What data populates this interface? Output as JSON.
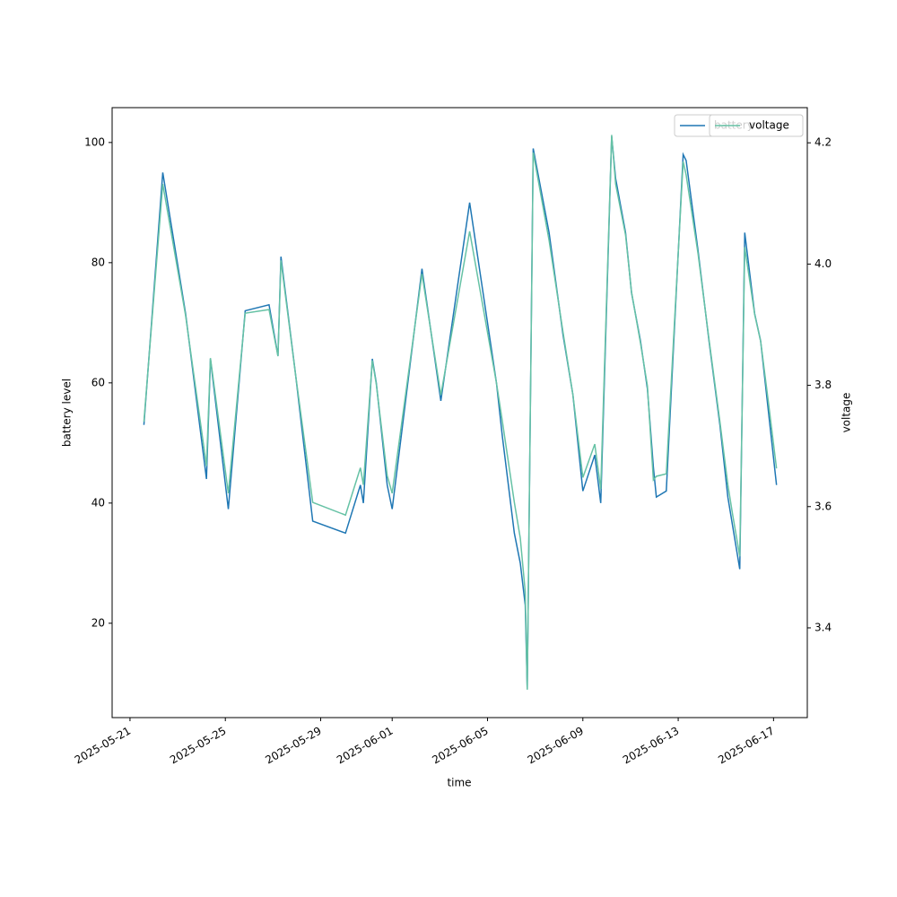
{
  "chart_data": {
    "type": "line",
    "x": [
      "2025-05-21T14:00",
      "2025-05-22T09:00",
      "2025-05-23T08:00",
      "2025-05-24T05:00",
      "2025-05-24T09:00",
      "2025-05-25T03:00",
      "2025-05-25T20:00",
      "2025-05-26T20:00",
      "2025-05-27T05:00",
      "2025-05-27T08:00",
      "2025-05-27T23:00",
      "2025-05-28T16:00",
      "2025-05-30T01:00",
      "2025-05-30T16:00",
      "2025-05-30T19:00",
      "2025-05-31T04:00",
      "2025-05-31T08:00",
      "2025-05-31T19:00",
      "2025-06-01T00:00",
      "2025-06-02T06:00",
      "2025-06-03T01:00",
      "2025-06-04T06:00",
      "2025-06-05T09:00",
      "2025-06-05T15:00",
      "2025-06-06T03:00",
      "2025-06-06T09:00",
      "2025-06-06T14:00",
      "2025-06-06T16:00",
      "2025-06-06T22:00",
      "2025-06-07T14:00",
      "2025-06-08T04:00",
      "2025-06-08T14:00",
      "2025-06-09T00:00",
      "2025-06-09T12:00",
      "2025-06-09T18:00",
      "2025-06-10T05:00",
      "2025-06-10T09:00",
      "2025-06-10T19:00",
      "2025-06-11T01:00",
      "2025-06-11T10:00",
      "2025-06-11T17:00",
      "2025-06-11T23:00",
      "2025-06-12T02:00",
      "2025-06-12T12:00",
      "2025-06-13T05:00",
      "2025-06-13T08:00",
      "2025-06-13T20:00",
      "2025-06-14T07:00",
      "2025-06-14T18:00",
      "2025-06-15T02:00",
      "2025-06-15T07:00",
      "2025-06-15T14:00",
      "2025-06-15T19:00",
      "2025-06-16T05:00",
      "2025-06-16T11:00",
      "2025-06-16T19:00",
      "2025-06-17T03:00"
    ],
    "series": [
      {
        "name": "battery",
        "color": "#1f77b4",
        "axis": "y",
        "values": [
          53,
          95,
          71.5,
          44,
          64,
          39,
          72,
          73,
          64.5,
          81,
          61,
          37,
          35,
          43,
          40,
          64,
          60,
          43,
          39,
          79,
          57,
          90,
          60,
          51,
          35,
          30,
          23,
          9,
          99,
          85,
          68,
          58,
          42,
          48,
          40,
          101,
          94,
          85,
          75,
          67,
          59,
          46,
          41,
          42,
          98,
          97,
          82,
          67,
          53,
          41,
          36,
          29,
          85,
          71.5,
          67,
          55,
          43
        ]
      },
      {
        "name": "voltage",
        "color": "#66c2a5",
        "axis": "y2",
        "values": [
          3.74,
          4.132,
          3.915,
          3.667,
          3.845,
          3.622,
          3.919,
          3.925,
          3.848,
          4.006,
          3.814,
          3.607,
          3.586,
          3.664,
          3.636,
          3.841,
          3.802,
          3.651,
          3.622,
          3.984,
          3.784,
          4.054,
          3.804,
          3.74,
          3.607,
          3.548,
          3.459,
          3.298,
          4.184,
          4.039,
          3.888,
          3.784,
          3.648,
          3.703,
          3.629,
          4.213,
          4.132,
          4.048,
          3.954,
          3.87,
          3.799,
          3.644,
          3.65,
          3.654,
          4.169,
          4.147,
          4.017,
          3.876,
          3.74,
          3.636,
          3.585,
          3.518,
          4.028,
          3.917,
          3.873,
          3.77,
          3.663
        ]
      }
    ],
    "xlabel": "time",
    "ylabel": "battery level",
    "y2label": "voltage",
    "xlim": [
      "2025-05-20T06:00",
      "2025-06-18T10:00"
    ],
    "xticks": [
      "2025-05-21",
      "2025-05-25",
      "2025-05-29",
      "2025-06-01",
      "2025-06-05",
      "2025-06-09",
      "2025-06-13",
      "2025-06-17"
    ],
    "ylim": [
      4.3,
      105.8
    ],
    "yticks": [
      20,
      40,
      60,
      80,
      100
    ],
    "y2lim": [
      3.252,
      4.258
    ],
    "y2ticks": [
      3.4,
      3.6,
      3.8,
      {
        "value": 4,
        "label": "4.0"
      },
      4.2
    ],
    "legend": "upper right",
    "grid": false
  }
}
